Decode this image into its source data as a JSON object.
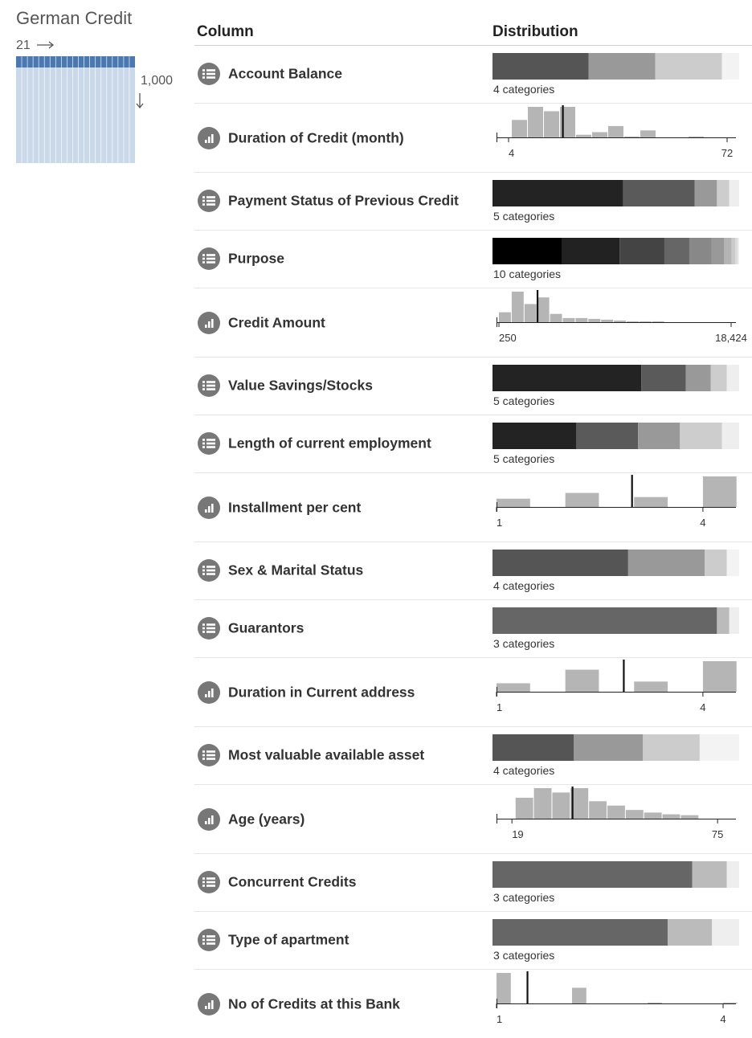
{
  "dataset": {
    "title": "German Credit",
    "column_count": "21",
    "row_count": "1,000"
  },
  "table": {
    "headers": [
      "Column",
      "Distribution"
    ],
    "rows": [
      {
        "name": "Account Balance",
        "kind": "categorical",
        "summary": "4 categories",
        "shares": [
          39,
          27,
          27,
          7
        ]
      },
      {
        "name": "Duration of Credit (month)",
        "kind": "numeric",
        "xlim": [
          0.25,
          74.75
        ],
        "xticks": [
          4,
          72
        ],
        "bins": [
          5,
          10,
          15,
          20,
          25,
          30,
          35,
          40,
          45,
          50,
          55,
          60,
          65,
          70
        ],
        "counts": [
          20,
          35,
          30,
          35,
          3,
          6,
          13,
          1,
          8,
          0,
          0,
          1,
          0
        ],
        "mean": 20.9
      },
      {
        "name": "Payment Status of Previous Credit",
        "kind": "categorical",
        "summary": "5 categories",
        "shares": [
          53,
          29,
          9,
          5,
          4
        ]
      },
      {
        "name": "Purpose",
        "kind": "categorical",
        "summary": "10 categories",
        "shares": [
          28,
          23,
          18,
          10,
          9,
          5,
          3,
          1.5,
          1,
          0.5
        ]
      },
      {
        "name": "Credit Amount",
        "kind": "numeric",
        "xlim": [
          61,
          18801
        ],
        "xticks": [
          250,
          {
            "value": 18424,
            "label": "18,424"
          }
        ],
        "bins": [
          250,
          1250,
          2250,
          3250,
          4250,
          5250,
          6250,
          7250,
          8250,
          9250,
          10250,
          11250,
          12250,
          13250,
          14250,
          15250,
          16250,
          17250,
          18250
        ],
        "counts": [
          12,
          37,
          22,
          30,
          10,
          5,
          5,
          4,
          3,
          2,
          1,
          1,
          1,
          0,
          0,
          0,
          0,
          0
        ],
        "mean": 3271
      },
      {
        "name": "Value Savings/Stocks",
        "kind": "categorical",
        "summary": "5 categories",
        "shares": [
          60,
          18,
          10,
          6.5,
          5
        ]
      },
      {
        "name": "Length of current employment",
        "kind": "categorical",
        "summary": "5 categories",
        "shares": [
          34,
          25,
          17,
          17,
          7
        ]
      },
      {
        "name": "Installment per cent",
        "kind": "numeric",
        "xlim": [
          1,
          4.48
        ],
        "xticks": [
          1,
          4
        ],
        "bins": [
          1,
          1.5,
          2,
          2.5,
          3,
          3.5,
          4,
          4.5
        ],
        "counts": [
          10,
          0,
          17,
          0,
          12,
          0,
          37
        ],
        "mean": 2.97
      },
      {
        "name": "Sex & Marital Status",
        "kind": "categorical",
        "summary": "4 categories",
        "shares": [
          55,
          31,
          9,
          5
        ]
      },
      {
        "name": "Guarantors",
        "kind": "categorical",
        "summary": "3 categories",
        "shares": [
          91,
          5,
          4
        ]
      },
      {
        "name": "Duration in Current address",
        "kind": "numeric",
        "xlim": [
          1,
          4.48
        ],
        "xticks": [
          1,
          4
        ],
        "bins": [
          1,
          1.5,
          2,
          2.5,
          3,
          3.5,
          4,
          4.5
        ],
        "counts": [
          10,
          0,
          26,
          0,
          12,
          0,
          36
        ],
        "mean": 2.85
      },
      {
        "name": "Most valuable available asset",
        "kind": "categorical",
        "summary": "4 categories",
        "shares": [
          33,
          28,
          23,
          16
        ]
      },
      {
        "name": "Age (years)",
        "kind": "numeric",
        "xlim": [
          14.8,
          80
        ],
        "xticks": [
          19,
          75
        ],
        "bins": [
          20,
          25,
          30,
          35,
          40,
          45,
          50,
          55,
          60,
          65,
          70
        ],
        "counts": [
          24,
          35,
          30,
          35,
          20,
          15,
          10,
          7,
          5,
          4
        ],
        "mean": 35.5
      },
      {
        "name": "Concurrent Credits",
        "kind": "categorical",
        "summary": "3 categories",
        "shares": [
          81,
          14,
          5
        ]
      },
      {
        "name": "Type of apartment",
        "kind": "categorical",
        "summary": "3 categories",
        "shares": [
          71,
          18,
          11
        ]
      },
      {
        "name": "No of Credits at this Bank",
        "kind": "numeric",
        "xlim": [
          1,
          4.17
        ],
        "xticks": [
          1,
          4
        ],
        "bins": [
          1,
          1.2,
          1.4,
          1.6,
          1.8,
          2,
          2.2,
          2.4,
          2.6,
          2.8,
          3,
          3.2,
          3.4,
          3.6,
          3.8,
          4,
          4.2
        ],
        "counts": [
          35,
          0,
          0,
          0,
          0,
          18,
          0,
          0,
          0,
          0,
          1,
          0,
          0,
          0,
          0,
          1
        ],
        "mean": 1.41
      }
    ]
  }
}
